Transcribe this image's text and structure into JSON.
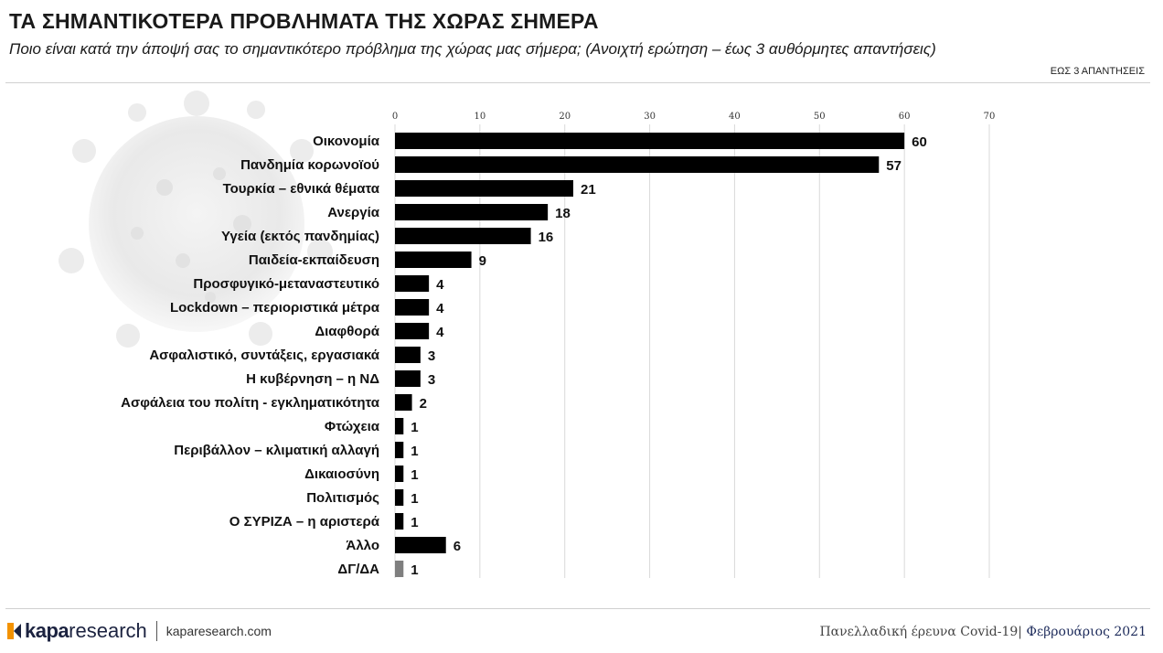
{
  "header": {
    "title": "ΤΑ ΣΗΜΑΝΤΙΚΟΤΕΡΑ ΠΡΟΒΛΗΜΑΤΑ ΤΗΣ ΧΩΡΑΣ ΣΗΜΕΡΑ",
    "subtitle": "Ποιο είναι κατά την άποψή σας το σημαντικότερο πρόβλημα της χώρας μας σήμερα; (Ανοιχτή ερώτηση – έως 3 αυθόρμητες απαντήσεις)",
    "note": "ΕΩΣ 3 ΑΠΑΝΤΗΣΕΙΣ"
  },
  "footer": {
    "logo_kapa": "kapa",
    "logo_research": "research",
    "url": "kaparesearch.com",
    "survey": "Πανελλαδική έρευνα Covid-19|",
    "date": "Φεβρουάριος 2021"
  },
  "colors": {
    "bar": "#000000",
    "bar_muted": "#7f7f7f",
    "gridline": "#d9d9d9",
    "brand_navy": "#1c2340",
    "logo_orange": "#f39200"
  },
  "chart_data": {
    "type": "bar",
    "orientation": "horizontal",
    "xlim": [
      0,
      70
    ],
    "xticks": [
      0,
      10,
      20,
      30,
      40,
      50,
      60,
      70
    ],
    "grid": true,
    "categories": [
      "Οικονομία",
      "Πανδημία κορωνοϊού",
      "Τουρκία – εθνικά θέματα",
      "Ανεργία",
      "Υγεία (εκτός πανδημίας)",
      "Παιδεία-εκπαίδευση",
      "Προσφυγικό-μεταναστευτικό",
      "Lockdown – περιοριστικά μέτρα",
      "Διαφθορά",
      "Ασφαλιστικό, συντάξεις, εργασιακά",
      "Η κυβέρνηση – η ΝΔ",
      "Ασφάλεια του πολίτη - εγκληματικότητα",
      "Φτώχεια",
      "Περιβάλλον – κλιματική αλλαγή",
      "Δικαιοσύνη",
      "Πολιτισμός",
      "Ο ΣΥΡΙΖΑ – η αριστερά",
      "Άλλο",
      "ΔΓ/ΔΑ"
    ],
    "values": [
      60,
      57,
      21,
      18,
      16,
      9,
      4,
      4,
      4,
      3,
      3,
      2,
      1,
      1,
      1,
      1,
      1,
      6,
      1
    ],
    "muted_categories": [
      "ΔΓ/ΔΑ"
    ]
  }
}
